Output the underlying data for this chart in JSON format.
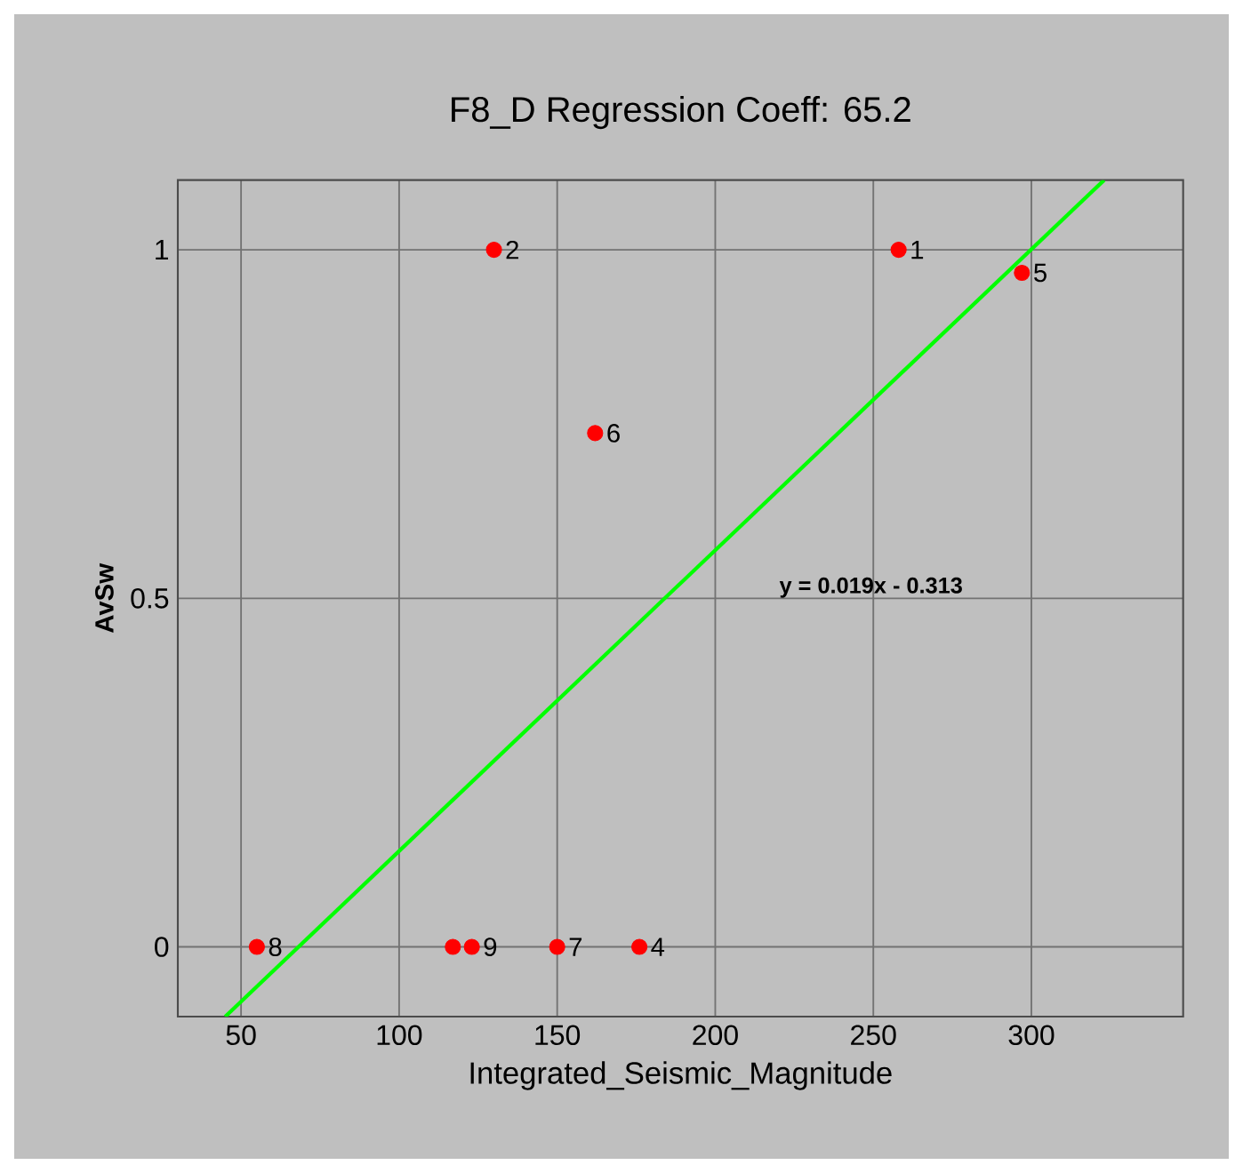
{
  "chart_data": {
    "type": "scatter",
    "title": "F8_D  Regression Coeff:  65.2",
    "xlabel": "Integrated_Seismic_Magnitude",
    "ylabel": "AvSw",
    "xlim": [
      30,
      348
    ],
    "ylim": [
      -0.1,
      1.1
    ],
    "xticks": [
      50,
      100,
      150,
      200,
      250,
      300
    ],
    "yticks": [
      0,
      0.5,
      1
    ],
    "grid": true,
    "series": [
      {
        "marker": "circle",
        "color": "#ff0000",
        "x": [
          258,
          130,
          117,
          176,
          297,
          162,
          150,
          55,
          123
        ],
        "values": [
          1,
          1,
          0,
          0,
          0.967,
          0.737,
          0,
          0,
          0
        ]
      },
      {
        "type": "line",
        "marker": "none",
        "color": "#00ff00",
        "x": [
          45,
          323
        ],
        "values": [
          -0.1,
          1.1
        ]
      }
    ],
    "annotations": [
      "y = 0.019x - 0.313",
      {
        "text": "1",
        "x": 258,
        "y": 1
      },
      {
        "text": "2",
        "x": 130,
        "y": 1
      },
      {
        "text": "4",
        "x": 176,
        "y": 0
      },
      {
        "text": "5",
        "x": 297,
        "y": 0.967
      },
      {
        "text": "6",
        "x": 162,
        "y": 0.737
      },
      {
        "text": "7",
        "x": 150,
        "y": 0
      },
      {
        "text": "8",
        "x": 55,
        "y": 0
      },
      {
        "text": "9",
        "x": 123,
        "y": 0
      }
    ]
  }
}
